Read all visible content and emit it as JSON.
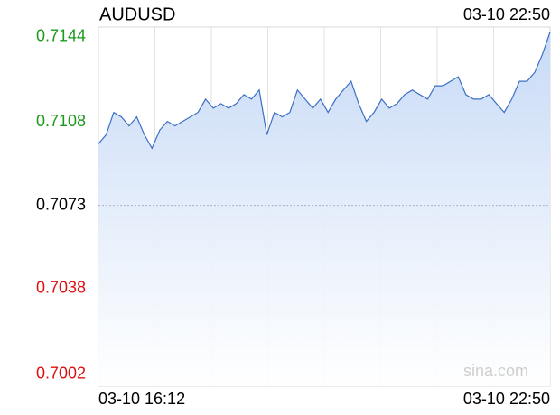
{
  "chart_data": {
    "type": "line",
    "title": "AUDUSD",
    "time": "03-10 22:50",
    "watermark": "sina.com",
    "categories": [
      "03-10 16:12",
      null,
      null,
      null,
      null,
      null,
      null,
      null,
      null,
      null,
      null,
      null,
      null,
      null,
      null,
      null,
      null,
      null,
      null,
      null,
      null,
      null,
      null,
      null,
      null,
      null,
      null,
      null,
      null,
      null,
      null,
      null,
      null,
      null,
      null,
      null,
      null,
      null,
      null,
      null,
      null,
      null,
      null,
      null,
      null,
      null,
      null,
      null,
      null,
      null,
      null,
      null,
      null,
      null,
      null,
      null,
      null,
      null,
      null,
      "03-10 22:50"
    ],
    "series": [
      {
        "name": "AUDUSD",
        "color": "#3b6fc4",
        "values": [
          0.70989,
          0.71027,
          0.71121,
          0.71102,
          0.71064,
          0.71102,
          0.71027,
          0.7097,
          0.71046,
          0.71083,
          0.71064,
          0.71083,
          0.71102,
          0.71121,
          0.71177,
          0.71139,
          0.71158,
          0.71139,
          0.71158,
          0.71196,
          0.71177,
          0.71215,
          0.71027,
          0.71121,
          0.71102,
          0.71121,
          0.71215,
          0.71177,
          0.71139,
          0.71177,
          0.71121,
          0.71177,
          0.71215,
          0.71252,
          0.71158,
          0.71083,
          0.71121,
          0.71177,
          0.71139,
          0.71158,
          0.71196,
          0.71215,
          0.71196,
          0.71177,
          0.71233,
          0.71233,
          0.71252,
          0.71271,
          0.71196,
          0.71177,
          0.71177,
          0.71196,
          0.71158,
          0.71121,
          0.71177,
          0.71252,
          0.71252,
          0.7129,
          0.71365,
          0.71459
        ]
      }
    ],
    "ylim": [
      0.6997,
      0.7148
    ],
    "yticks": [
      0.7144,
      0.7108,
      0.7073,
      0.7038,
      0.7002
    ],
    "up_color": "#1a9a1a",
    "down_color": "#e01010",
    "flat_color": "#000000"
  }
}
